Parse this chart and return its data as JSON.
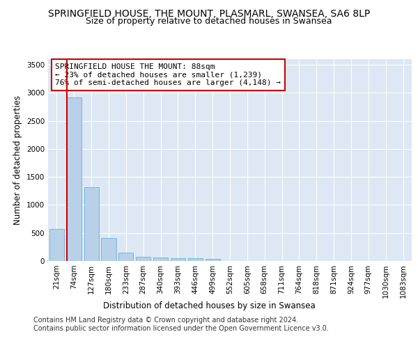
{
  "title_line1": "SPRINGFIELD HOUSE, THE MOUNT, PLASMARL, SWANSEA, SA6 8LP",
  "title_line2": "Size of property relative to detached houses in Swansea",
  "xlabel": "Distribution of detached houses by size in Swansea",
  "ylabel": "Number of detached properties",
  "categories": [
    "21sqm",
    "74sqm",
    "127sqm",
    "180sqm",
    "233sqm",
    "287sqm",
    "340sqm",
    "393sqm",
    "446sqm",
    "499sqm",
    "552sqm",
    "605sqm",
    "658sqm",
    "711sqm",
    "764sqm",
    "818sqm",
    "871sqm",
    "924sqm",
    "977sqm",
    "1030sqm",
    "1083sqm"
  ],
  "values": [
    575,
    2920,
    1310,
    415,
    150,
    80,
    60,
    55,
    45,
    40,
    0,
    0,
    0,
    0,
    0,
    0,
    0,
    0,
    0,
    0,
    0
  ],
  "bar_color": "#b8d0e8",
  "bar_edge_color": "#6aaed6",
  "highlight_line_color": "#cc0000",
  "annotation_text": "SPRINGFIELD HOUSE THE MOUNT: 88sqm\n← 23% of detached houses are smaller (1,239)\n76% of semi-detached houses are larger (4,148) →",
  "annotation_box_color": "#ffffff",
  "annotation_border_color": "#cc0000",
  "ylim": [
    0,
    3600
  ],
  "yticks": [
    0,
    500,
    1000,
    1500,
    2000,
    2500,
    3000,
    3500
  ],
  "background_color": "#dde8f4",
  "grid_color": "#ffffff",
  "footer": "Contains HM Land Registry data © Crown copyright and database right 2024.\nContains public sector information licensed under the Open Government Licence v3.0.",
  "title_fontsize": 10,
  "subtitle_fontsize": 9,
  "axis_label_fontsize": 8.5,
  "tick_fontsize": 7.5,
  "annotation_fontsize": 8,
  "footer_fontsize": 7
}
